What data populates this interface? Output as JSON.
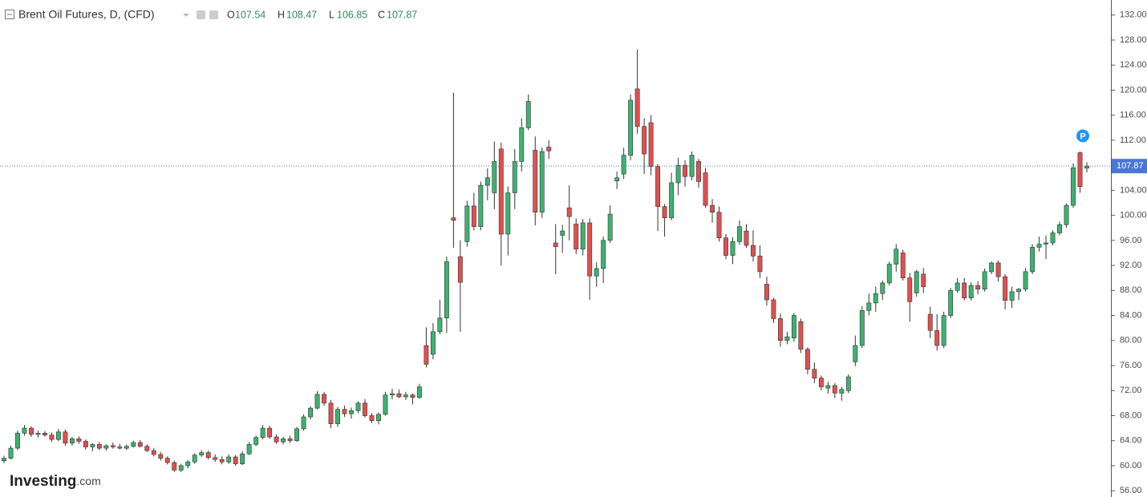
{
  "chart_data": {
    "type": "candlestick",
    "title": "Brent Oil Futures, D, (CFD)",
    "ohlc_labels": [
      "O",
      "H",
      "L",
      "C"
    ],
    "marker_label": "P",
    "watermark": [
      "Investing",
      ".com"
    ],
    "up_color": "#3cb371",
    "down_color": "#e0504f",
    "price_line_color": "#4a77d4",
    "ylim": [
      55,
      134.4
    ],
    "yticks": [
      {
        "value": 56,
        "label": "56.00"
      },
      {
        "value": 60,
        "label": "60.00"
      },
      {
        "value": 64,
        "label": "64.00"
      },
      {
        "value": 68,
        "label": "68.00"
      },
      {
        "value": 72,
        "label": "72.00"
      },
      {
        "value": 76,
        "label": "76.00"
      },
      {
        "value": 80,
        "label": "80.00"
      },
      {
        "value": 84,
        "label": "84.00"
      },
      {
        "value": 88,
        "label": "88.00"
      },
      {
        "value": 92,
        "label": "92.00"
      },
      {
        "value": 96,
        "label": "96.00"
      },
      {
        "value": 100,
        "label": "100.00"
      },
      {
        "value": 104,
        "label": "104.00"
      },
      {
        "value": 108,
        "label": "108.00"
      },
      {
        "value": 112,
        "label": "112.00"
      },
      {
        "value": 116,
        "label": "116.00"
      },
      {
        "value": 120,
        "label": "120.00"
      },
      {
        "value": 124,
        "label": "124.00"
      },
      {
        "value": 128,
        "label": "128.00"
      },
      {
        "value": 132,
        "label": "132.00"
      }
    ],
    "ohlc": [
      [
        60.8,
        61.6,
        60.4,
        61.2
      ],
      [
        61.2,
        63.2,
        61,
        62.8
      ],
      [
        62.8,
        65.6,
        62.5,
        65.2
      ],
      [
        65.2,
        66.5,
        64.8,
        66
      ],
      [
        66,
        66.3,
        64.6,
        65
      ],
      [
        65,
        65.6,
        64.5,
        65.2
      ],
      [
        65.2,
        65.5,
        64.6,
        64.9
      ],
      [
        64.9,
        65.3,
        63.8,
        64.2
      ],
      [
        64.2,
        65.9,
        63.9,
        65.4
      ],
      [
        65.4,
        65.8,
        63.2,
        63.6
      ],
      [
        63.6,
        64.6,
        63.2,
        64.3
      ],
      [
        64.3,
        64.7,
        63.5,
        63.9
      ],
      [
        63.9,
        64.2,
        62.6,
        63
      ],
      [
        63,
        63.6,
        62.3,
        63.4
      ],
      [
        63.4,
        63.8,
        62.5,
        62.8
      ],
      [
        62.8,
        63.4,
        62.4,
        63.2
      ],
      [
        63.2,
        63.7,
        62.7,
        63
      ],
      [
        63,
        63.5,
        62.6,
        62.8
      ],
      [
        62.8,
        63.4,
        62.5,
        63.1
      ],
      [
        63.1,
        64,
        62.9,
        63.7
      ],
      [
        63.7,
        64.1,
        62.9,
        63.1
      ],
      [
        63.1,
        63.4,
        62.2,
        62.4
      ],
      [
        62.4,
        62.8,
        61.5,
        61.8
      ],
      [
        61.8,
        62.2,
        60.8,
        61.2
      ],
      [
        61.2,
        61.5,
        60.2,
        60.5
      ],
      [
        60.5,
        60.8,
        59,
        59.3
      ],
      [
        59.3,
        60.3,
        59,
        60
      ],
      [
        60,
        60.9,
        59.6,
        60.6
      ],
      [
        60.6,
        62,
        60.3,
        61.7
      ],
      [
        61.7,
        62.5,
        61.4,
        62.1
      ],
      [
        62.1,
        62.4,
        61,
        61.3
      ],
      [
        61.3,
        61.8,
        60.6,
        61
      ],
      [
        61,
        61.5,
        60.2,
        60.6
      ],
      [
        60.6,
        61.8,
        60.3,
        61.4
      ],
      [
        61.4,
        61.7,
        60,
        60.3
      ],
      [
        60.3,
        62.3,
        60.1,
        61.9
      ],
      [
        61.9,
        63.8,
        61.7,
        63.4
      ],
      [
        63.4,
        64.8,
        63.1,
        64.5
      ],
      [
        64.5,
        66.5,
        64.2,
        66
      ],
      [
        66,
        66.4,
        64.3,
        64.6
      ],
      [
        64.6,
        65,
        63.5,
        63.8
      ],
      [
        63.8,
        64.6,
        63.4,
        64.3
      ],
      [
        64.3,
        64.8,
        63.6,
        64
      ],
      [
        64,
        66.2,
        63.8,
        65.9
      ],
      [
        65.9,
        68.2,
        65.6,
        67.8
      ],
      [
        67.8,
        69.5,
        67.4,
        69.2
      ],
      [
        69.2,
        71.9,
        69,
        71.4
      ],
      [
        71.4,
        71.8,
        69.6,
        70
      ],
      [
        70,
        70.5,
        66,
        66.7
      ],
      [
        66.7,
        69.4,
        66.2,
        69
      ],
      [
        69,
        69.6,
        67.8,
        68.3
      ],
      [
        68.3,
        69.3,
        67.5,
        68.8
      ],
      [
        68.8,
        70.3,
        68.4,
        70
      ],
      [
        70,
        70.6,
        67.7,
        68
      ],
      [
        68,
        68.4,
        66.8,
        67.2
      ],
      [
        67.2,
        68.5,
        66.6,
        68.2
      ],
      [
        68.2,
        71.8,
        68,
        71.3
      ],
      [
        71.3,
        72.3,
        70.6,
        71.5
      ],
      [
        71.5,
        72.2,
        70.8,
        71
      ],
      [
        71,
        71.8,
        70.5,
        71.3
      ],
      [
        71.3,
        71.5,
        69.8,
        70.9
      ],
      [
        70.9,
        73.1,
        70.7,
        72.6
      ],
      [
        79.2,
        82.1,
        75.7,
        76.2
      ],
      [
        77.8,
        82.8,
        77,
        81.4
      ],
      [
        81.4,
        86.5,
        81,
        83.6
      ],
      [
        83.6,
        93.4,
        81.2,
        92.6
      ],
      [
        99.6,
        119.6,
        94.8,
        99.2
      ],
      [
        93.4,
        96,
        81.4,
        89.3
      ],
      [
        95.8,
        102.3,
        95,
        101.5
      ],
      [
        101.5,
        103.6,
        97.6,
        98.2
      ],
      [
        98.2,
        105.4,
        97.6,
        104.8
      ],
      [
        104.8,
        107.5,
        102.4,
        106
      ],
      [
        103.6,
        111.8,
        101,
        108.6
      ],
      [
        110.6,
        111.6,
        92,
        97
      ],
      [
        97,
        104.6,
        93.6,
        103.6
      ],
      [
        103.6,
        110.6,
        101,
        108.6
      ],
      [
        108.6,
        115.5,
        107,
        114
      ],
      [
        114,
        119.3,
        113.6,
        118.2
      ],
      [
        110.4,
        112.6,
        98.4,
        100.5
      ],
      [
        100.5,
        110.8,
        99.6,
        110.2
      ],
      [
        110.9,
        112,
        109,
        110.3
      ],
      [
        95.6,
        98.6,
        90.6,
        95
      ],
      [
        96.8,
        98.5,
        94,
        97.5
      ],
      [
        101.2,
        104.8,
        96,
        99.8
      ],
      [
        98.6,
        99.5,
        93.8,
        94.6
      ],
      [
        94.6,
        99.4,
        93.6,
        98.8
      ],
      [
        98.8,
        99.5,
        86.5,
        90.3
      ],
      [
        90.3,
        92.5,
        88.6,
        91.5
      ],
      [
        91.5,
        96.6,
        89.2,
        96
      ],
      [
        96,
        101.6,
        95.6,
        100.2
      ],
      [
        105.5,
        107,
        104.2,
        106
      ],
      [
        106.6,
        110.8,
        105.8,
        109.6
      ],
      [
        109.6,
        119.3,
        108.8,
        118.4
      ],
      [
        120.2,
        126.5,
        113,
        114.2
      ],
      [
        114.2,
        115.5,
        106.6,
        109.8
      ],
      [
        114.8,
        116,
        106.4,
        107.8
      ],
      [
        107.8,
        108.2,
        97.5,
        101.4
      ],
      [
        101.4,
        101.8,
        96.6,
        99.6
      ],
      [
        99.6,
        106.8,
        99.2,
        105.2
      ],
      [
        105.2,
        109.2,
        103.2,
        108
      ],
      [
        108,
        108.8,
        104.6,
        106.2
      ],
      [
        106.2,
        110.2,
        105.6,
        109.6
      ],
      [
        108.6,
        109,
        104.4,
        105.4
      ],
      [
        106.8,
        107.6,
        101.2,
        101.6
      ],
      [
        101.6,
        102.6,
        98.8,
        100.5
      ],
      [
        100.5,
        101.4,
        95.8,
        96.4
      ],
      [
        96.4,
        97,
        93,
        93.6
      ],
      [
        93.6,
        96.5,
        92.2,
        95.8
      ],
      [
        95.8,
        99.2,
        95.3,
        98.2
      ],
      [
        97.5,
        98.6,
        94.8,
        95.2
      ],
      [
        95.2,
        97.6,
        92.6,
        93.5
      ],
      [
        93.5,
        95.2,
        90,
        91
      ],
      [
        89,
        90.2,
        85.6,
        86.5
      ],
      [
        86.5,
        86.8,
        82.8,
        83.5
      ],
      [
        83.5,
        84.3,
        79,
        80
      ],
      [
        80,
        81.4,
        79.4,
        80.6
      ],
      [
        80.4,
        84.4,
        79.8,
        84
      ],
      [
        83,
        83.5,
        78,
        78.6
      ],
      [
        78.6,
        78.9,
        74.6,
        75.4
      ],
      [
        75.4,
        76.5,
        73.2,
        74
      ],
      [
        74,
        74.4,
        72,
        72.6
      ],
      [
        72.4,
        73.4,
        71.5,
        72.8
      ],
      [
        72.8,
        73.2,
        70.8,
        71.6
      ],
      [
        71.6,
        72.6,
        70.4,
        72.2
      ],
      [
        72,
        74.6,
        71.6,
        74.2
      ],
      [
        76.6,
        80.8,
        75.9,
        79.2
      ],
      [
        79.2,
        85.5,
        78.8,
        84.8
      ],
      [
        84.8,
        87.5,
        84,
        86
      ],
      [
        86,
        88.6,
        84.6,
        87.5
      ],
      [
        87.5,
        89.6,
        86.5,
        89.2
      ],
      [
        89.2,
        92.6,
        88.8,
        92.2
      ],
      [
        92.2,
        95.4,
        91,
        94.6
      ],
      [
        94,
        94.5,
        89.6,
        90
      ],
      [
        90,
        90.8,
        83,
        86.2
      ],
      [
        87.6,
        91.3,
        87,
        91
      ],
      [
        90.6,
        91.6,
        87.6,
        88.6
      ],
      [
        84.2,
        85.4,
        80.4,
        81.6
      ],
      [
        81.6,
        84.2,
        78.4,
        79.2
      ],
      [
        79.2,
        84.6,
        78.8,
        84
      ],
      [
        84,
        88.4,
        83.6,
        88
      ],
      [
        88,
        90,
        87.6,
        89.2
      ],
      [
        89.2,
        90,
        86.4,
        86.8
      ],
      [
        86.8,
        89.3,
        86.4,
        88.8
      ],
      [
        88.8,
        89.5,
        87.4,
        88.2
      ],
      [
        88.2,
        91.5,
        87.8,
        91
      ],
      [
        91,
        92.6,
        90.6,
        92.4
      ],
      [
        92.4,
        92.8,
        89.4,
        90.2
      ],
      [
        90.2,
        90.6,
        85,
        86.4
      ],
      [
        86.4,
        88.6,
        85.2,
        87.8
      ],
      [
        87.8,
        88.4,
        86.5,
        88.2
      ],
      [
        88.2,
        91.6,
        87.8,
        91
      ],
      [
        91,
        95.4,
        90.6,
        94.9
      ],
      [
        94.9,
        96.6,
        94.2,
        95.4
      ],
      [
        95.4,
        96.8,
        93,
        95.6
      ],
      [
        95.6,
        97.6,
        95.2,
        97.2
      ],
      [
        97.2,
        99,
        96.8,
        98.5
      ],
      [
        98.5,
        101.9,
        98,
        101.6
      ],
      [
        101.6,
        108.3,
        101.2,
        107.6
      ],
      [
        110,
        110.2,
        103.6,
        104.6
      ],
      [
        107.54,
        108.47,
        106.85,
        107.87
      ]
    ]
  }
}
